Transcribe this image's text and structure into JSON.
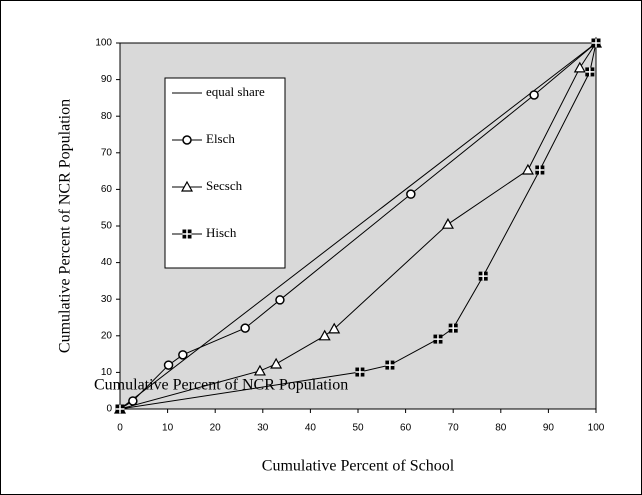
{
  "chart_data": {
    "type": "line",
    "x_label": "Cumulative Percent of School",
    "y_label": "Cumulative Percent of NCR Population",
    "annotation": "Cumulative Percent of NCR Population",
    "xlim": [
      0,
      100
    ],
    "ylim": [
      0,
      100
    ],
    "xticks": [
      0,
      10,
      20,
      30,
      40,
      50,
      60,
      70,
      80,
      90,
      100
    ],
    "yticks": [
      0,
      10,
      20,
      30,
      40,
      50,
      60,
      70,
      80,
      90,
      100
    ],
    "grid": false,
    "series": [
      {
        "name": "equal share",
        "color": "#000000",
        "marker": "none",
        "x": [
          0,
          100
        ],
        "values": [
          0,
          100
        ]
      },
      {
        "name": "Elsch",
        "color": "#000000",
        "marker": "circle",
        "x": [
          0,
          2.7,
          10.2,
          13.2,
          26.3,
          33.6,
          61.1,
          87,
          100
        ],
        "values": [
          0,
          2.2,
          12,
          14.8,
          22.1,
          29.8,
          58.7,
          85.8,
          100
        ]
      },
      {
        "name": "Secsch",
        "color": "#000000",
        "marker": "triangle",
        "x": [
          0,
          29.4,
          32.8,
          43,
          45,
          68.9,
          85.7,
          96.6,
          100
        ],
        "values": [
          0,
          10.4,
          12.3,
          20,
          21.9,
          50.5,
          65.3,
          93.2,
          100
        ]
      },
      {
        "name": "Hisch",
        "color": "#000000",
        "marker": "square",
        "x": [
          0,
          50.4,
          56.7,
          66.8,
          70,
          76.3,
          88.2,
          98.7,
          100
        ],
        "values": [
          0,
          10.1,
          12,
          19.1,
          22.1,
          36.3,
          65.3,
          92.1,
          100
        ]
      }
    ]
  }
}
